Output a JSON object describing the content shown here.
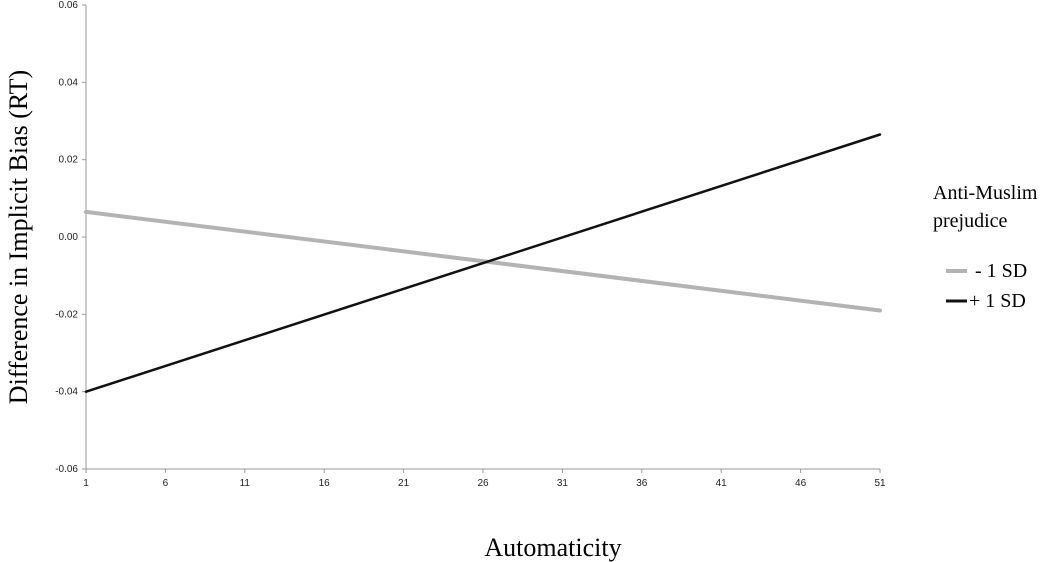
{
  "chart_data": {
    "type": "line",
    "xlabel": "Automaticity",
    "ylabel": "Difference in Implicit Bias (RT)",
    "xlim": [
      1,
      51
    ],
    "ylim": [
      -0.06,
      0.06
    ],
    "x_ticks": [
      "1",
      "6",
      "11",
      "16",
      "21",
      "26",
      "31",
      "36",
      "41",
      "46",
      "51"
    ],
    "y_ticks": [
      "0.06",
      "0.04",
      "0.02",
      "0.00",
      "-0.02",
      "-0.04",
      "-0.06"
    ],
    "x": [
      1,
      51
    ],
    "legend_title_line1": "Anti-Muslim",
    "legend_title_line2": "prejudice",
    "legend_position": "right",
    "series": [
      {
        "name": "-  1 SD",
        "values": [
          0.0065,
          -0.019
        ],
        "color": "#b3b3b3"
      },
      {
        "name": "+ 1 SD",
        "values": [
          -0.04,
          0.0265
        ],
        "color": "#111111"
      }
    ]
  }
}
